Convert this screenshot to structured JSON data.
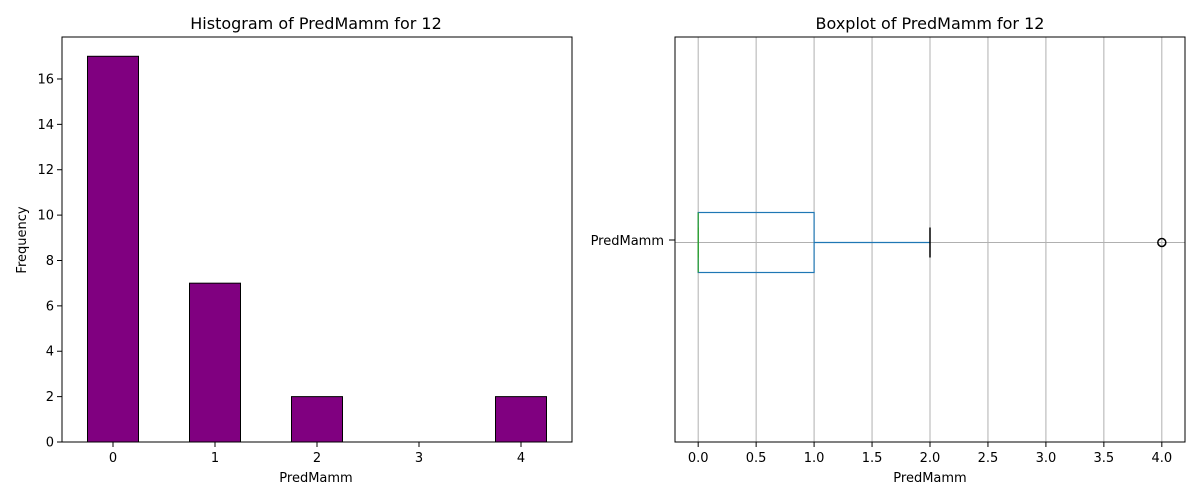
{
  "chart_data": [
    {
      "type": "bar",
      "title": "Histogram of PredMamm for 12",
      "xlabel": "PredMamm",
      "ylabel": "Frequency",
      "categories": [
        "0",
        "1",
        "2",
        "3",
        "4"
      ],
      "values": [
        17,
        7,
        2,
        0,
        2
      ],
      "ylim": [
        0,
        17.85
      ],
      "yticks": [
        "0",
        "2",
        "4",
        "6",
        "8",
        "10",
        "12",
        "14",
        "16"
      ],
      "grid": false,
      "colors": {
        "bar_fill": "#800080",
        "bar_edge": "#000000"
      }
    },
    {
      "type": "boxplot",
      "title": "Boxplot of PredMamm for 12",
      "xlabel": "PredMamm",
      "category": "PredMamm",
      "xlim": [
        -0.2,
        4.2
      ],
      "xticks": [
        "0.0",
        "0.5",
        "1.0",
        "1.5",
        "2.0",
        "2.5",
        "3.0",
        "3.5",
        "4.0"
      ],
      "stats": {
        "whisker_low": 0,
        "q1": 0,
        "median": 0,
        "q3": 1,
        "whisker_high": 2,
        "outliers": [
          4
        ]
      },
      "grid": true,
      "colors": {
        "box": "#1f77b4",
        "median": "#2ca02c",
        "whisker_cap": "#000000",
        "grid": "#b0b0b0"
      }
    }
  ]
}
